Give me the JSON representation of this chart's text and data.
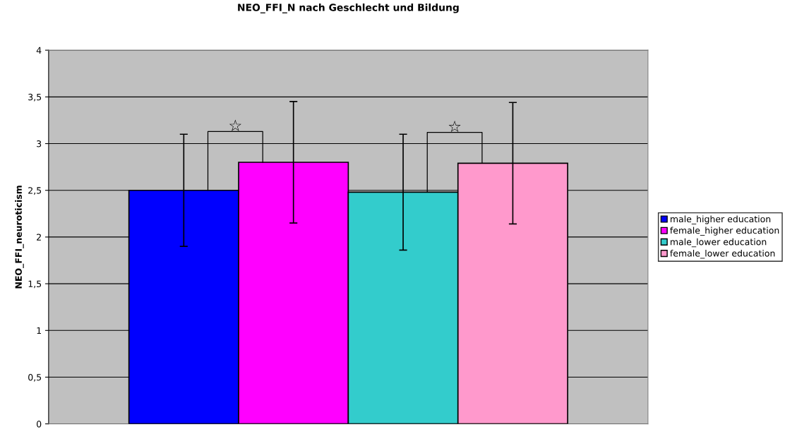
{
  "chart_data": {
    "type": "bar",
    "title": "NEO_FFI_N nach Geschlecht und Bildung",
    "ylabel": "NEO_FFI_neuroticism",
    "categories": [
      null
    ],
    "series": [
      {
        "name": "male_higher education",
        "color": "#0000ff",
        "values": [
          2.5
        ],
        "errors": [
          0.6
        ]
      },
      {
        "name": "female_higher education",
        "color": "#ff00ff",
        "values": [
          2.8
        ],
        "errors": [
          0.65
        ]
      },
      {
        "name": "male_lower education",
        "color": "#33cccc",
        "values": [
          2.48
        ],
        "errors": [
          0.62
        ]
      },
      {
        "name": "female_lower education",
        "color": "#ff99cc",
        "values": [
          2.79
        ],
        "errors": [
          0.65
        ]
      }
    ],
    "ylim": [
      0,
      4
    ],
    "yticks": [
      0,
      {
        "value": 0.5,
        "label": "0,5"
      },
      1,
      {
        "value": 1.5,
        "label": "1,5"
      },
      2,
      {
        "value": 2.5,
        "label": "2,5"
      },
      3,
      {
        "value": 3.5,
        "label": "3,5"
      },
      4
    ],
    "annotations": [
      "☆",
      "☆"
    ],
    "grid": "y",
    "legend": "right"
  }
}
